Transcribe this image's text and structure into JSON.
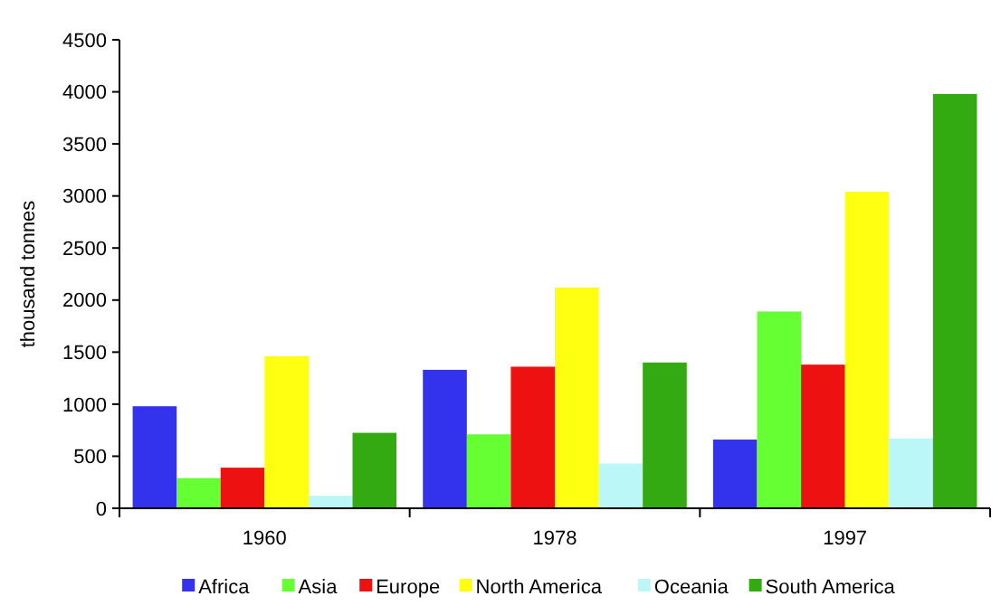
{
  "chart_data": {
    "type": "bar",
    "ylabel": "thousand tonnes",
    "categories": [
      "1960",
      "1978",
      "1997"
    ],
    "series": [
      {
        "name": "Africa",
        "color": "#3333ee",
        "values": [
          980,
          1330,
          660
        ]
      },
      {
        "name": "Asia",
        "color": "#66ff33",
        "values": [
          290,
          710,
          1890
        ]
      },
      {
        "name": "Europe",
        "color": "#ee1111",
        "values": [
          390,
          1360,
          1380
        ]
      },
      {
        "name": "North America",
        "color": "#ffff11",
        "values": [
          1460,
          2120,
          3040
        ]
      },
      {
        "name": "Oceania",
        "color": "#bbf7f7",
        "values": [
          120,
          430,
          670
        ]
      },
      {
        "name": "South America",
        "color": "#33aa11",
        "values": [
          725,
          1400,
          3980
        ]
      }
    ],
    "ylim": [
      0,
      4500
    ],
    "yticks": [
      0,
      500,
      1000,
      1500,
      2000,
      2500,
      3000,
      3500,
      4000,
      4500
    ],
    "grid": false,
    "legend": "bottom"
  }
}
